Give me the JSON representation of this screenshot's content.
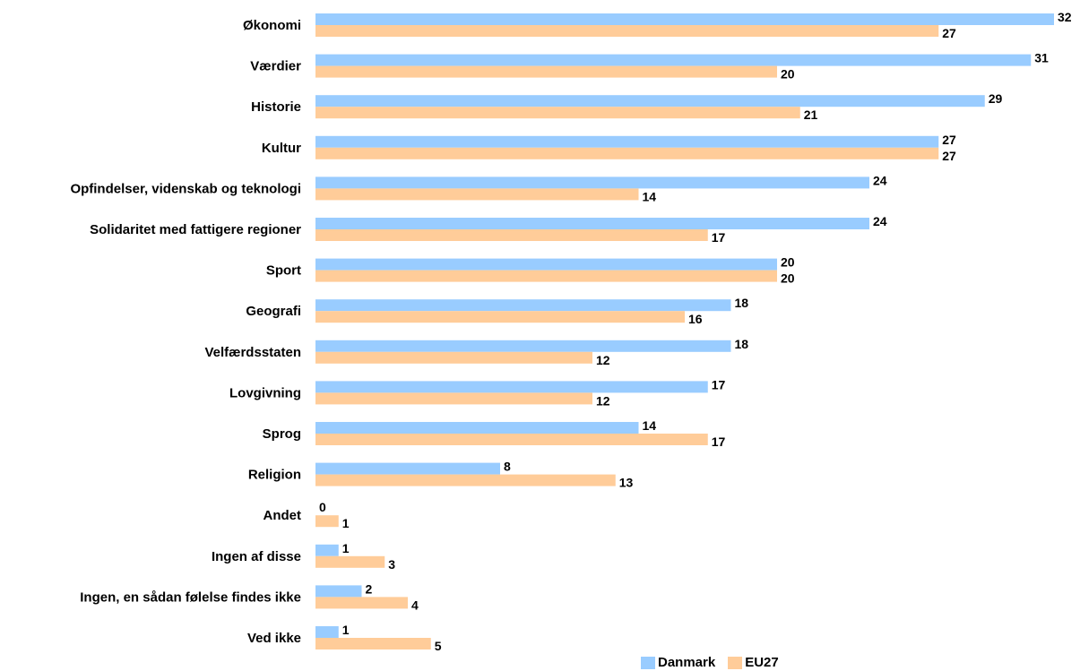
{
  "chart_data": {
    "type": "bar",
    "orientation": "horizontal",
    "categories": [
      "Økonomi",
      "Værdier",
      "Historie",
      "Kultur",
      "Opfindelser, videnskab og teknologi",
      "Solidaritet med fattigere regioner",
      "Sport",
      "Geografi",
      "Velfærdsstaten",
      "Lovgivning",
      "Sprog",
      "Religion",
      "Andet",
      "Ingen af disse",
      "Ingen, en sådan følelse findes ikke",
      "Ved ikke"
    ],
    "series": [
      {
        "name": "Danmark",
        "color": "#99ccff",
        "values": [
          32,
          31,
          29,
          27,
          24,
          24,
          20,
          18,
          18,
          17,
          14,
          8,
          0,
          1,
          2,
          1
        ]
      },
      {
        "name": "EU27",
        "color": "#ffcc99",
        "values": [
          27,
          20,
          21,
          27,
          14,
          17,
          20,
          16,
          12,
          12,
          17,
          13,
          1,
          3,
          4,
          5
        ]
      }
    ],
    "grid": false,
    "legend_position": "bottom"
  }
}
